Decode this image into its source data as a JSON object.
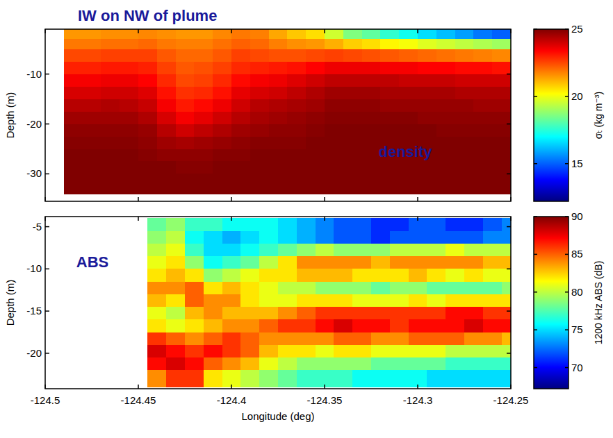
{
  "chart_data": [
    {
      "type": "heatmap",
      "title": "IW on NW of plume",
      "annotation": "density",
      "ylabel": "Depth (m)",
      "tick_labels": "y",
      "xlim": [
        -124.5,
        -124.25
      ],
      "xticks": [
        -124.5,
        -124.45,
        -124.4,
        -124.35,
        -124.3,
        -124.25
      ],
      "ylim": [
        -35.5,
        -1
      ],
      "yticks": [
        -30,
        -20,
        -10
      ],
      "x_bins": [
        -124.49,
        -124.48,
        -124.47,
        -124.46,
        -124.45,
        -124.44,
        -124.43,
        -124.42,
        -124.41,
        -124.4,
        -124.39,
        -124.38,
        -124.37,
        -124.36,
        -124.35,
        -124.34,
        -124.33,
        -124.32,
        -124.31,
        -124.3,
        -124.29,
        -124.28,
        -124.27,
        -124.26,
        -124.25
      ],
      "y_bins": [
        -1,
        -3,
        -5,
        -7.5,
        -10,
        -12.5,
        -15,
        -17.5,
        -20,
        -22.5,
        -25,
        -27.5,
        -30,
        -34
      ],
      "cells": [
        [
          21.5,
          21.5,
          21.6,
          21.6,
          21.7,
          21.6,
          21.5,
          21.5,
          21.7,
          21.9,
          21.8,
          21.3,
          20.9,
          20.6,
          19.6,
          18.6,
          18.2,
          17.6,
          17.2,
          16.6,
          16.2,
          15.8,
          15.3,
          15.0
        ],
        [
          21.9,
          21.9,
          22.0,
          22.0,
          22.1,
          21.9,
          21.8,
          21.8,
          22.0,
          22.2,
          22.1,
          21.8,
          21.6,
          21.5,
          21.2,
          20.8,
          20.6,
          20.3,
          20.1,
          19.8,
          19.6,
          19.4,
          19.2,
          19.0
        ],
        [
          22.5,
          22.5,
          22.6,
          22.6,
          22.6,
          22.3,
          22.1,
          22.1,
          22.3,
          22.6,
          22.5,
          22.4,
          22.4,
          22.5,
          22.6,
          22.5,
          22.4,
          22.3,
          22.2,
          22.1,
          22.0,
          21.9,
          21.8,
          21.7
        ],
        [
          23.0,
          23.0,
          23.1,
          23.1,
          23.0,
          22.6,
          22.3,
          22.4,
          22.6,
          22.9,
          23.0,
          23.1,
          23.2,
          23.4,
          23.6,
          23.6,
          23.6,
          23.5,
          23.5,
          23.4,
          23.4,
          23.3,
          23.3,
          23.2
        ],
        [
          23.5,
          23.5,
          23.6,
          23.6,
          23.4,
          22.9,
          22.5,
          22.6,
          22.9,
          23.3,
          23.5,
          23.6,
          23.8,
          24.0,
          24.2,
          24.2,
          24.2,
          24.2,
          24.1,
          24.1,
          24.1,
          24.0,
          24.0,
          24.0
        ],
        [
          23.9,
          23.9,
          24.0,
          24.0,
          23.8,
          23.2,
          22.8,
          22.9,
          23.2,
          23.7,
          23.9,
          24.0,
          24.2,
          24.4,
          24.6,
          24.6,
          24.6,
          24.5,
          24.5,
          24.5,
          24.5,
          24.4,
          24.4,
          24.4
        ],
        [
          24.3,
          24.3,
          24.4,
          24.3,
          24.1,
          23.5,
          23.1,
          23.3,
          23.6,
          24.0,
          24.3,
          24.4,
          24.5,
          24.6,
          24.8,
          24.8,
          24.8,
          24.7,
          24.7,
          24.7,
          24.7,
          24.7,
          24.6,
          24.6
        ],
        [
          24.6,
          24.6,
          24.6,
          24.6,
          24.4,
          23.9,
          23.5,
          23.7,
          24.0,
          24.3,
          24.5,
          24.6,
          24.7,
          24.8,
          24.9,
          24.9,
          24.9,
          24.9,
          24.9,
          24.8,
          24.8,
          24.8,
          24.8,
          24.8
        ],
        [
          24.8,
          24.8,
          24.8,
          24.8,
          24.7,
          24.3,
          24.0,
          24.2,
          24.4,
          24.6,
          24.7,
          24.8,
          24.8,
          24.9,
          25.0,
          25.0,
          25.0,
          25.0,
          25.0,
          25.0,
          24.9,
          24.9,
          24.9,
          24.9
        ],
        [
          24.9,
          24.9,
          24.9,
          24.9,
          24.8,
          24.6,
          24.5,
          24.6,
          24.7,
          24.8,
          24.9,
          24.9,
          24.9,
          25.0,
          25.0,
          25.0,
          25.0,
          25.0,
          25.0,
          25.0,
          25.0,
          25.0,
          25.0,
          25.0
        ],
        [
          25.0,
          25.0,
          25.0,
          25.0,
          24.9,
          24.8,
          24.8,
          24.8,
          24.9,
          24.9,
          25.0,
          25.0,
          25.0,
          25.0,
          25.0,
          25.0,
          25.0,
          25.0,
          25.0,
          25.0,
          25.0,
          25.0,
          25.0,
          25.0
        ],
        [
          25.0,
          25.0,
          25.0,
          25.0,
          25.0,
          25.0,
          24.9,
          24.9,
          25.0,
          25.0,
          25.0,
          25.0,
          25.0,
          25.0,
          25.0,
          25.0,
          25.0,
          25.0,
          25.0,
          25.0,
          25.0,
          25.0,
          25.0,
          25.0
        ],
        [
          25.0,
          25.0,
          25.0,
          25.0,
          25.0,
          25.0,
          25.0,
          25.0,
          25.0,
          25.0,
          25.0,
          25.0,
          25.0,
          25.0,
          25.0,
          25.0,
          25.0,
          25.0,
          25.0,
          25.0,
          25.0,
          25.0,
          25.0,
          25.0
        ]
      ],
      "color_label": "σₜ (kg m⁻³)",
      "color_range": [
        12.2,
        25
      ],
      "color_ticks": [
        15,
        20,
        25
      ]
    },
    {
      "type": "heatmap",
      "annotation": "ABS",
      "xlabel": "Longitude (deg)",
      "ylabel": "Depth (m)",
      "xlim": [
        -124.5,
        -124.25
      ],
      "xticks": [
        -124.5,
        -124.45,
        -124.4,
        -124.35,
        -124.3,
        -124.25
      ],
      "ylim": [
        -24.2,
        -3.8
      ],
      "yticks": [
        -20,
        -15,
        -10,
        -5
      ],
      "x_bins": [
        -124.445,
        -124.435,
        -124.425,
        -124.415,
        -124.405,
        -124.395,
        -124.385,
        -124.375,
        -124.365,
        -124.355,
        -124.345,
        -124.335,
        -124.325,
        -124.315,
        -124.305,
        -124.295,
        -124.285,
        -124.275,
        -124.265,
        -124.255,
        -124.25
      ],
      "y_bins": [
        -4,
        -5.5,
        -7,
        -8.5,
        -10,
        -11.5,
        -13,
        -14.5,
        -16,
        -17.5,
        -19,
        -20.5,
        -22,
        -24
      ],
      "cells": [
        [
          78,
          79,
          77,
          77,
          76,
          76,
          76,
          75,
          74,
          73,
          72,
          72,
          71,
          71,
          72,
          72,
          71,
          71,
          72,
          73
        ],
        [
          79,
          80,
          76,
          75,
          74,
          75,
          76,
          75,
          74,
          73,
          72,
          72,
          71,
          72,
          72,
          72,
          72,
          72,
          73,
          73
        ],
        [
          80,
          81,
          77,
          75,
          75,
          76,
          77,
          78,
          79,
          80,
          79,
          79,
          79,
          80,
          80,
          80,
          81,
          80,
          80,
          80
        ],
        [
          81,
          82,
          79,
          76,
          77,
          78,
          80,
          82,
          84,
          84,
          84,
          84,
          83,
          84,
          84,
          84,
          84,
          84,
          83,
          83
        ],
        [
          82,
          83,
          82,
          79,
          80,
          81,
          82,
          82,
          83,
          83,
          83,
          82,
          82,
          82,
          83,
          82,
          81,
          82,
          81,
          81
        ],
        [
          84,
          84,
          85,
          82,
          83,
          82,
          81,
          80,
          80,
          79,
          79,
          79,
          78,
          79,
          79,
          78,
          78,
          78,
          78,
          79
        ],
        [
          83,
          82,
          85,
          84,
          84,
          82,
          81,
          81,
          82,
          82,
          82,
          81,
          81,
          81,
          82,
          81,
          82,
          82,
          82,
          82
        ],
        [
          81,
          80,
          83,
          84,
          83,
          83,
          83,
          84,
          85,
          86,
          86,
          86,
          86,
          86,
          86,
          86,
          87,
          87,
          86,
          86
        ],
        [
          82,
          81,
          82,
          83,
          84,
          84,
          85,
          86,
          86,
          87,
          88,
          87,
          87,
          86,
          87,
          87,
          87,
          88,
          87,
          87
        ],
        [
          86,
          85,
          84,
          85,
          86,
          85,
          84,
          84,
          84,
          84,
          85,
          85,
          84,
          84,
          85,
          85,
          85,
          84,
          84,
          83
        ],
        [
          88,
          87,
          86,
          87,
          86,
          85,
          83,
          82,
          82,
          81,
          82,
          82,
          81,
          81,
          81,
          81,
          80,
          80,
          80,
          80
        ],
        [
          87,
          88,
          87,
          85,
          84,
          83,
          81,
          80,
          79,
          79,
          79,
          79,
          78,
          78,
          78,
          78,
          77,
          77,
          77,
          77
        ],
        [
          84,
          86,
          86,
          82,
          81,
          80,
          79,
          78,
          77,
          77,
          77,
          76,
          76,
          76,
          76,
          75,
          75,
          75,
          75,
          75
        ]
      ],
      "color_label": "1200 kHz ABS (dB)",
      "color_range": [
        67.2,
        90
      ],
      "color_ticks": [
        70,
        75,
        80,
        85,
        90
      ]
    }
  ]
}
